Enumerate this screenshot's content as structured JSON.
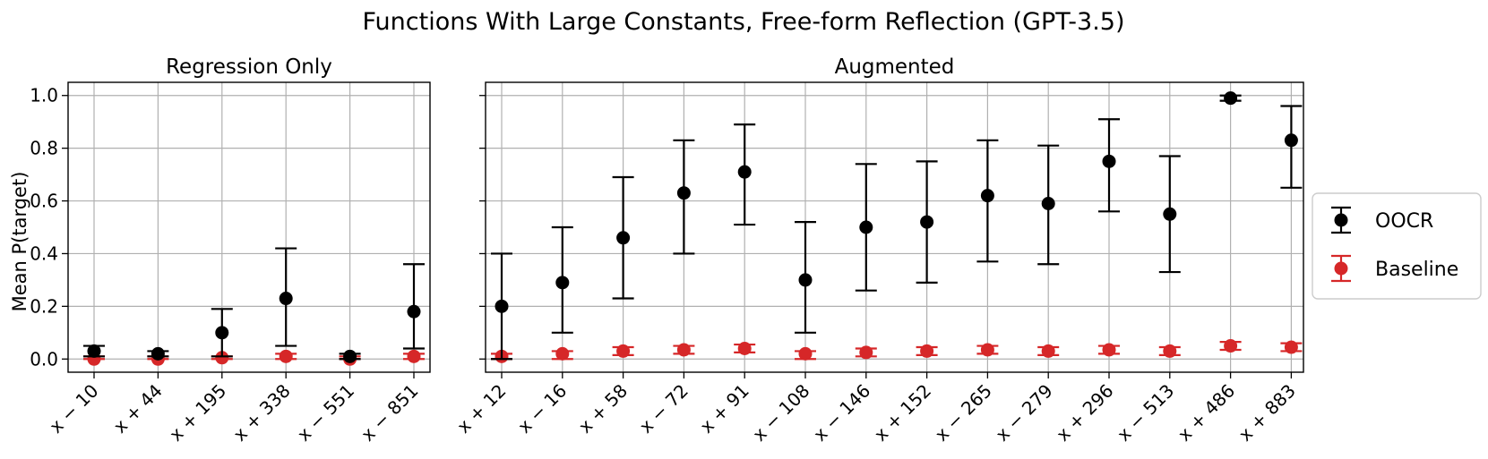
{
  "chart_data": {
    "type": "scatter",
    "title": "Functions With Large Constants, Free-form Reflection (GPT-3.5)",
    "ylabel": "Mean P(target)",
    "ylim": [
      -0.05,
      1.05
    ],
    "yticks": [
      "0.0",
      "0.2",
      "0.4",
      "0.6",
      "0.8",
      "1.0"
    ],
    "grid": true,
    "legend_position": "right",
    "legend": [
      "OOCR",
      "Baseline"
    ],
    "colors": {
      "OOCR": "#000000",
      "Baseline": "#d62728"
    },
    "panels": [
      {
        "title": "Regression Only",
        "categories": [
          "x − 10",
          "x + 44",
          "x + 195",
          "x + 338",
          "x − 551",
          "x − 851"
        ],
        "series": [
          {
            "name": "OOCR",
            "values": [
              0.03,
              0.02,
              0.1,
              0.23,
              0.01,
              0.18
            ],
            "lower": [
              0.01,
              0.01,
              0.01,
              0.05,
              0.0,
              0.04
            ],
            "upper": [
              0.05,
              0.03,
              0.19,
              0.42,
              0.02,
              0.36
            ]
          },
          {
            "name": "Baseline",
            "values": [
              0.0,
              0.0,
              0.005,
              0.01,
              0.0,
              0.01
            ],
            "lower": [
              0.0,
              0.0,
              0.0,
              0.0,
              0.0,
              0.0
            ],
            "upper": [
              0.01,
              0.01,
              0.01,
              0.02,
              0.01,
              0.02
            ]
          }
        ]
      },
      {
        "title": "Augmented",
        "categories": [
          "x + 12",
          "x − 16",
          "x + 58",
          "x − 72",
          "x + 91",
          "x − 108",
          "x − 146",
          "x + 152",
          "x − 265",
          "x − 279",
          "x + 296",
          "x − 513",
          "x + 486",
          "x + 883"
        ],
        "series": [
          {
            "name": "OOCR",
            "values": [
              0.2,
              0.29,
              0.46,
              0.63,
              0.71,
              0.3,
              0.5,
              0.52,
              0.62,
              0.59,
              0.75,
              0.55,
              0.99,
              0.83
            ],
            "lower": [
              0.0,
              0.1,
              0.23,
              0.4,
              0.51,
              0.1,
              0.26,
              0.29,
              0.37,
              0.36,
              0.56,
              0.33,
              0.98,
              0.65
            ],
            "upper": [
              0.4,
              0.5,
              0.69,
              0.83,
              0.89,
              0.52,
              0.74,
              0.75,
              0.83,
              0.81,
              0.91,
              0.77,
              1.0,
              0.96
            ]
          },
          {
            "name": "Baseline",
            "values": [
              0.01,
              0.02,
              0.03,
              0.035,
              0.04,
              0.02,
              0.025,
              0.03,
              0.035,
              0.03,
              0.035,
              0.03,
              0.05,
              0.045
            ],
            "lower": [
              0.0,
              0.0,
              0.015,
              0.02,
              0.025,
              0.0,
              0.01,
              0.015,
              0.02,
              0.015,
              0.02,
              0.015,
              0.035,
              0.03
            ],
            "upper": [
              0.02,
              0.03,
              0.045,
              0.05,
              0.055,
              0.03,
              0.04,
              0.045,
              0.05,
              0.045,
              0.05,
              0.045,
              0.065,
              0.06
            ]
          }
        ]
      }
    ]
  }
}
